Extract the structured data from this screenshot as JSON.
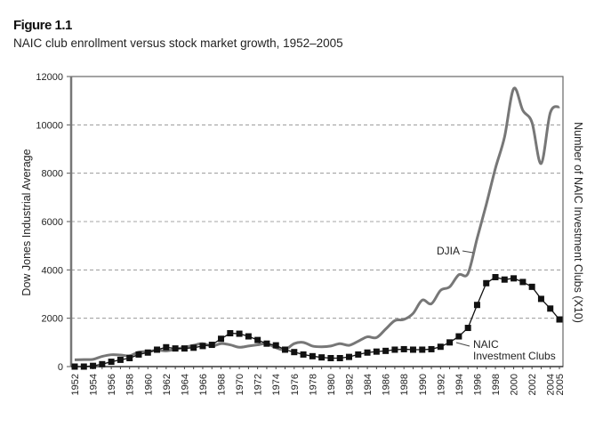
{
  "figure_label": "Figure 1.1",
  "chart_data": {
    "type": "line",
    "title": "NAIC club enrollment versus stock market growth, 1952–2005",
    "ylabel": "Dow Jones Industrial Average",
    "ylabel_right": "Number of NAIC Investment Clubs (X10)",
    "ylim": [
      0,
      12000
    ],
    "yticks": [
      0,
      2000,
      4000,
      6000,
      8000,
      10000,
      12000
    ],
    "xlim": [
      1952,
      2005
    ],
    "xticks": [
      "1952",
      "1954",
      "1956",
      "1958",
      "1960",
      "1962",
      "1964",
      "1966",
      "1968",
      "1970",
      "1972",
      "1974",
      "1976",
      "1978",
      "1980",
      "1982",
      "1984",
      "1986",
      "1988",
      "1990",
      "1992",
      "1994",
      "1996",
      "1998",
      "2000",
      "2002",
      "2004",
      "2005"
    ],
    "grid": "horizontal dashed",
    "x": [
      1952,
      1953,
      1954,
      1955,
      1956,
      1957,
      1958,
      1959,
      1960,
      1961,
      1962,
      1963,
      1964,
      1965,
      1966,
      1967,
      1968,
      1969,
      1970,
      1971,
      1972,
      1973,
      1974,
      1975,
      1976,
      1977,
      1978,
      1979,
      1980,
      1981,
      1982,
      1983,
      1984,
      1985,
      1986,
      1987,
      1988,
      1989,
      1990,
      1991,
      1992,
      1993,
      1994,
      1995,
      1996,
      1997,
      1998,
      1999,
      2000,
      2001,
      2002,
      2003,
      2004,
      2005
    ],
    "series": [
      {
        "name": "DJIA",
        "color": "#777777",
        "marker": "none",
        "values": [
          280,
          290,
          300,
          420,
          490,
          480,
          450,
          600,
          620,
          680,
          650,
          720,
          800,
          880,
          950,
          850,
          950,
          900,
          800,
          850,
          900,
          950,
          780,
          700,
          950,
          1000,
          850,
          820,
          850,
          950,
          880,
          1050,
          1230,
          1200,
          1550,
          1900,
          1950,
          2200,
          2750,
          2600,
          3150,
          3300,
          3800,
          3850,
          5300,
          6700,
          8200,
          9500,
          11500,
          10600,
          10100,
          8400,
          10500,
          10750
        ]
      },
      {
        "name": "NAIC Investment Clubs",
        "label_lines": [
          "NAIC",
          "Investment Clubs"
        ],
        "color": "#111111",
        "marker": "square",
        "values": [
          0,
          0,
          30,
          100,
          200,
          280,
          350,
          500,
          580,
          700,
          800,
          750,
          750,
          780,
          850,
          900,
          1150,
          1380,
          1360,
          1250,
          1100,
          950,
          880,
          700,
          600,
          500,
          430,
          380,
          350,
          350,
          400,
          500,
          580,
          620,
          650,
          700,
          720,
          700,
          700,
          720,
          820,
          1000,
          1250,
          1600,
          2550,
          3450,
          3700,
          3600,
          3650,
          3500,
          3300,
          2800,
          2400,
          1950
        ]
      }
    ]
  }
}
